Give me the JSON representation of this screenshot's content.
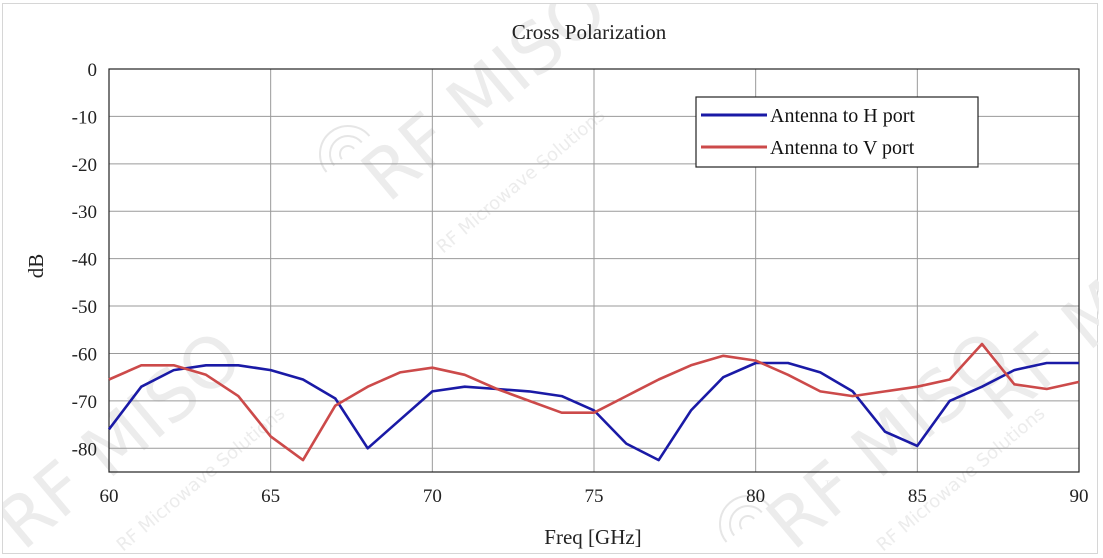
{
  "chart_data": {
    "type": "line",
    "title": "Cross Polarization",
    "xlabel": "Freq [GHz]",
    "ylabel": "dB",
    "xlim": [
      60,
      90
    ],
    "ylim": [
      -85,
      0
    ],
    "x_ticks": [
      "60",
      "65",
      "70",
      "75",
      "80",
      "85",
      "90"
    ],
    "y_ticks": [
      "0",
      "-10",
      "-20",
      "-30",
      "-40",
      "-50",
      "-60",
      "-70",
      "-80"
    ],
    "grid": true,
    "legend_position": "top-right",
    "series": [
      {
        "name": "Antenna to H port",
        "color": "#1a1aa6",
        "x": [
          60,
          61,
          62,
          63,
          64,
          65,
          66,
          67,
          68,
          69,
          70,
          71,
          72,
          73,
          74,
          75,
          76,
          77,
          78,
          79,
          80,
          81,
          82,
          83,
          84,
          85,
          86,
          87,
          88,
          89,
          90
        ],
        "y": [
          -76,
          -67,
          -63.5,
          -62.5,
          -62.5,
          -63.5,
          -65.5,
          -69.5,
          -80,
          -74,
          -68,
          -67,
          -67.5,
          -68,
          -69,
          -72,
          -79,
          -82.5,
          -72,
          -65,
          -62,
          -62,
          -64,
          -68,
          -76.5,
          -79.5,
          -70,
          -67,
          -63.5,
          -62,
          -62
        ]
      },
      {
        "name": "Antenna to V port",
        "color": "#cc4a4a",
        "x": [
          60,
          61,
          62,
          63,
          64,
          65,
          66,
          67,
          68,
          69,
          70,
          71,
          72,
          73,
          74,
          75,
          76,
          77,
          78,
          79,
          80,
          81,
          82,
          83,
          84,
          85,
          86,
          87,
          88,
          89,
          90
        ],
        "y": [
          -65.5,
          -62.5,
          -62.5,
          -64.5,
          -69,
          -77.5,
          -82.5,
          -71,
          -67,
          -64,
          -63,
          -64.5,
          -67.5,
          -70,
          -72.5,
          -72.5,
          -69,
          -65.5,
          -62.5,
          -60.5,
          -61.5,
          -64.5,
          -68,
          -69,
          -68,
          -67,
          -65.5,
          -58,
          -66.5,
          -67.5,
          -66
        ]
      }
    ]
  },
  "watermark": {
    "text": "RF MISO",
    "subtext": "RF Microwave Solutions",
    "tm": "™"
  }
}
